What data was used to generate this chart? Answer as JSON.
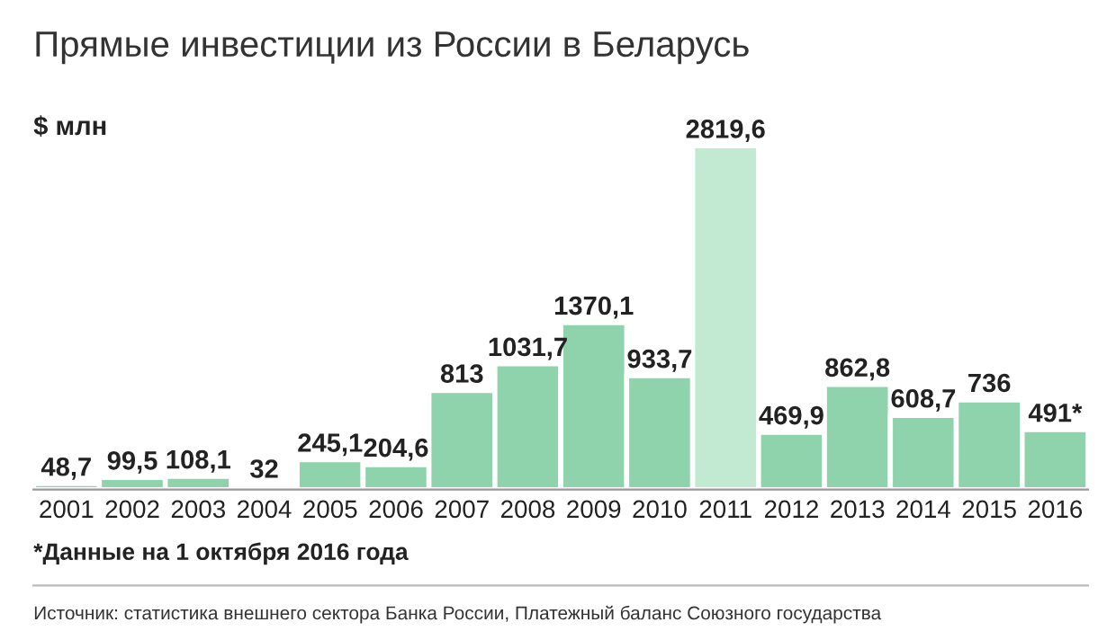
{
  "chart_data": {
    "type": "bar",
    "title": "Прямые инвестиции из России в Беларусь",
    "ylabel": "$ млн",
    "categories": [
      "2001",
      "2002",
      "2003",
      "2004",
      "2005",
      "2006",
      "2007",
      "2008",
      "2009",
      "2010",
      "2011",
      "2012",
      "2013",
      "2014",
      "2015",
      "2016"
    ],
    "values": [
      48.7,
      99.5,
      108.1,
      32,
      245.1,
      204.6,
      813,
      1031.7,
      1370.1,
      933.7,
      2819.6,
      469.9,
      862.8,
      608.7,
      736,
      491
    ],
    "value_labels": [
      "48,7",
      "99,5",
      "108,1",
      "32",
      "245,1",
      "204,6",
      "813",
      "1031,7",
      "1370,1",
      "933,7",
      "2819,6",
      "469,9",
      "862,8",
      "608,7",
      "736",
      "491*"
    ],
    "colors": [
      "#8fd3ad",
      "#8fd3ad",
      "#8fd3ad",
      "#8fd3ad",
      "#8fd3ad",
      "#8fd3ad",
      "#8fd3ad",
      "#8fd3ad",
      "#8fd3ad",
      "#8fd3ad",
      "#c2ead3",
      "#8fd3ad",
      "#8fd3ad",
      "#8fd3ad",
      "#8fd3ad",
      "#8fd3ad"
    ],
    "annotations": [
      "*Данные на 1 октября 2016 года",
      "Источник: статистика внешнего сектора Банка России, Платежный баланс Союзного государства"
    ],
    "grid": false,
    "legend": false
  }
}
